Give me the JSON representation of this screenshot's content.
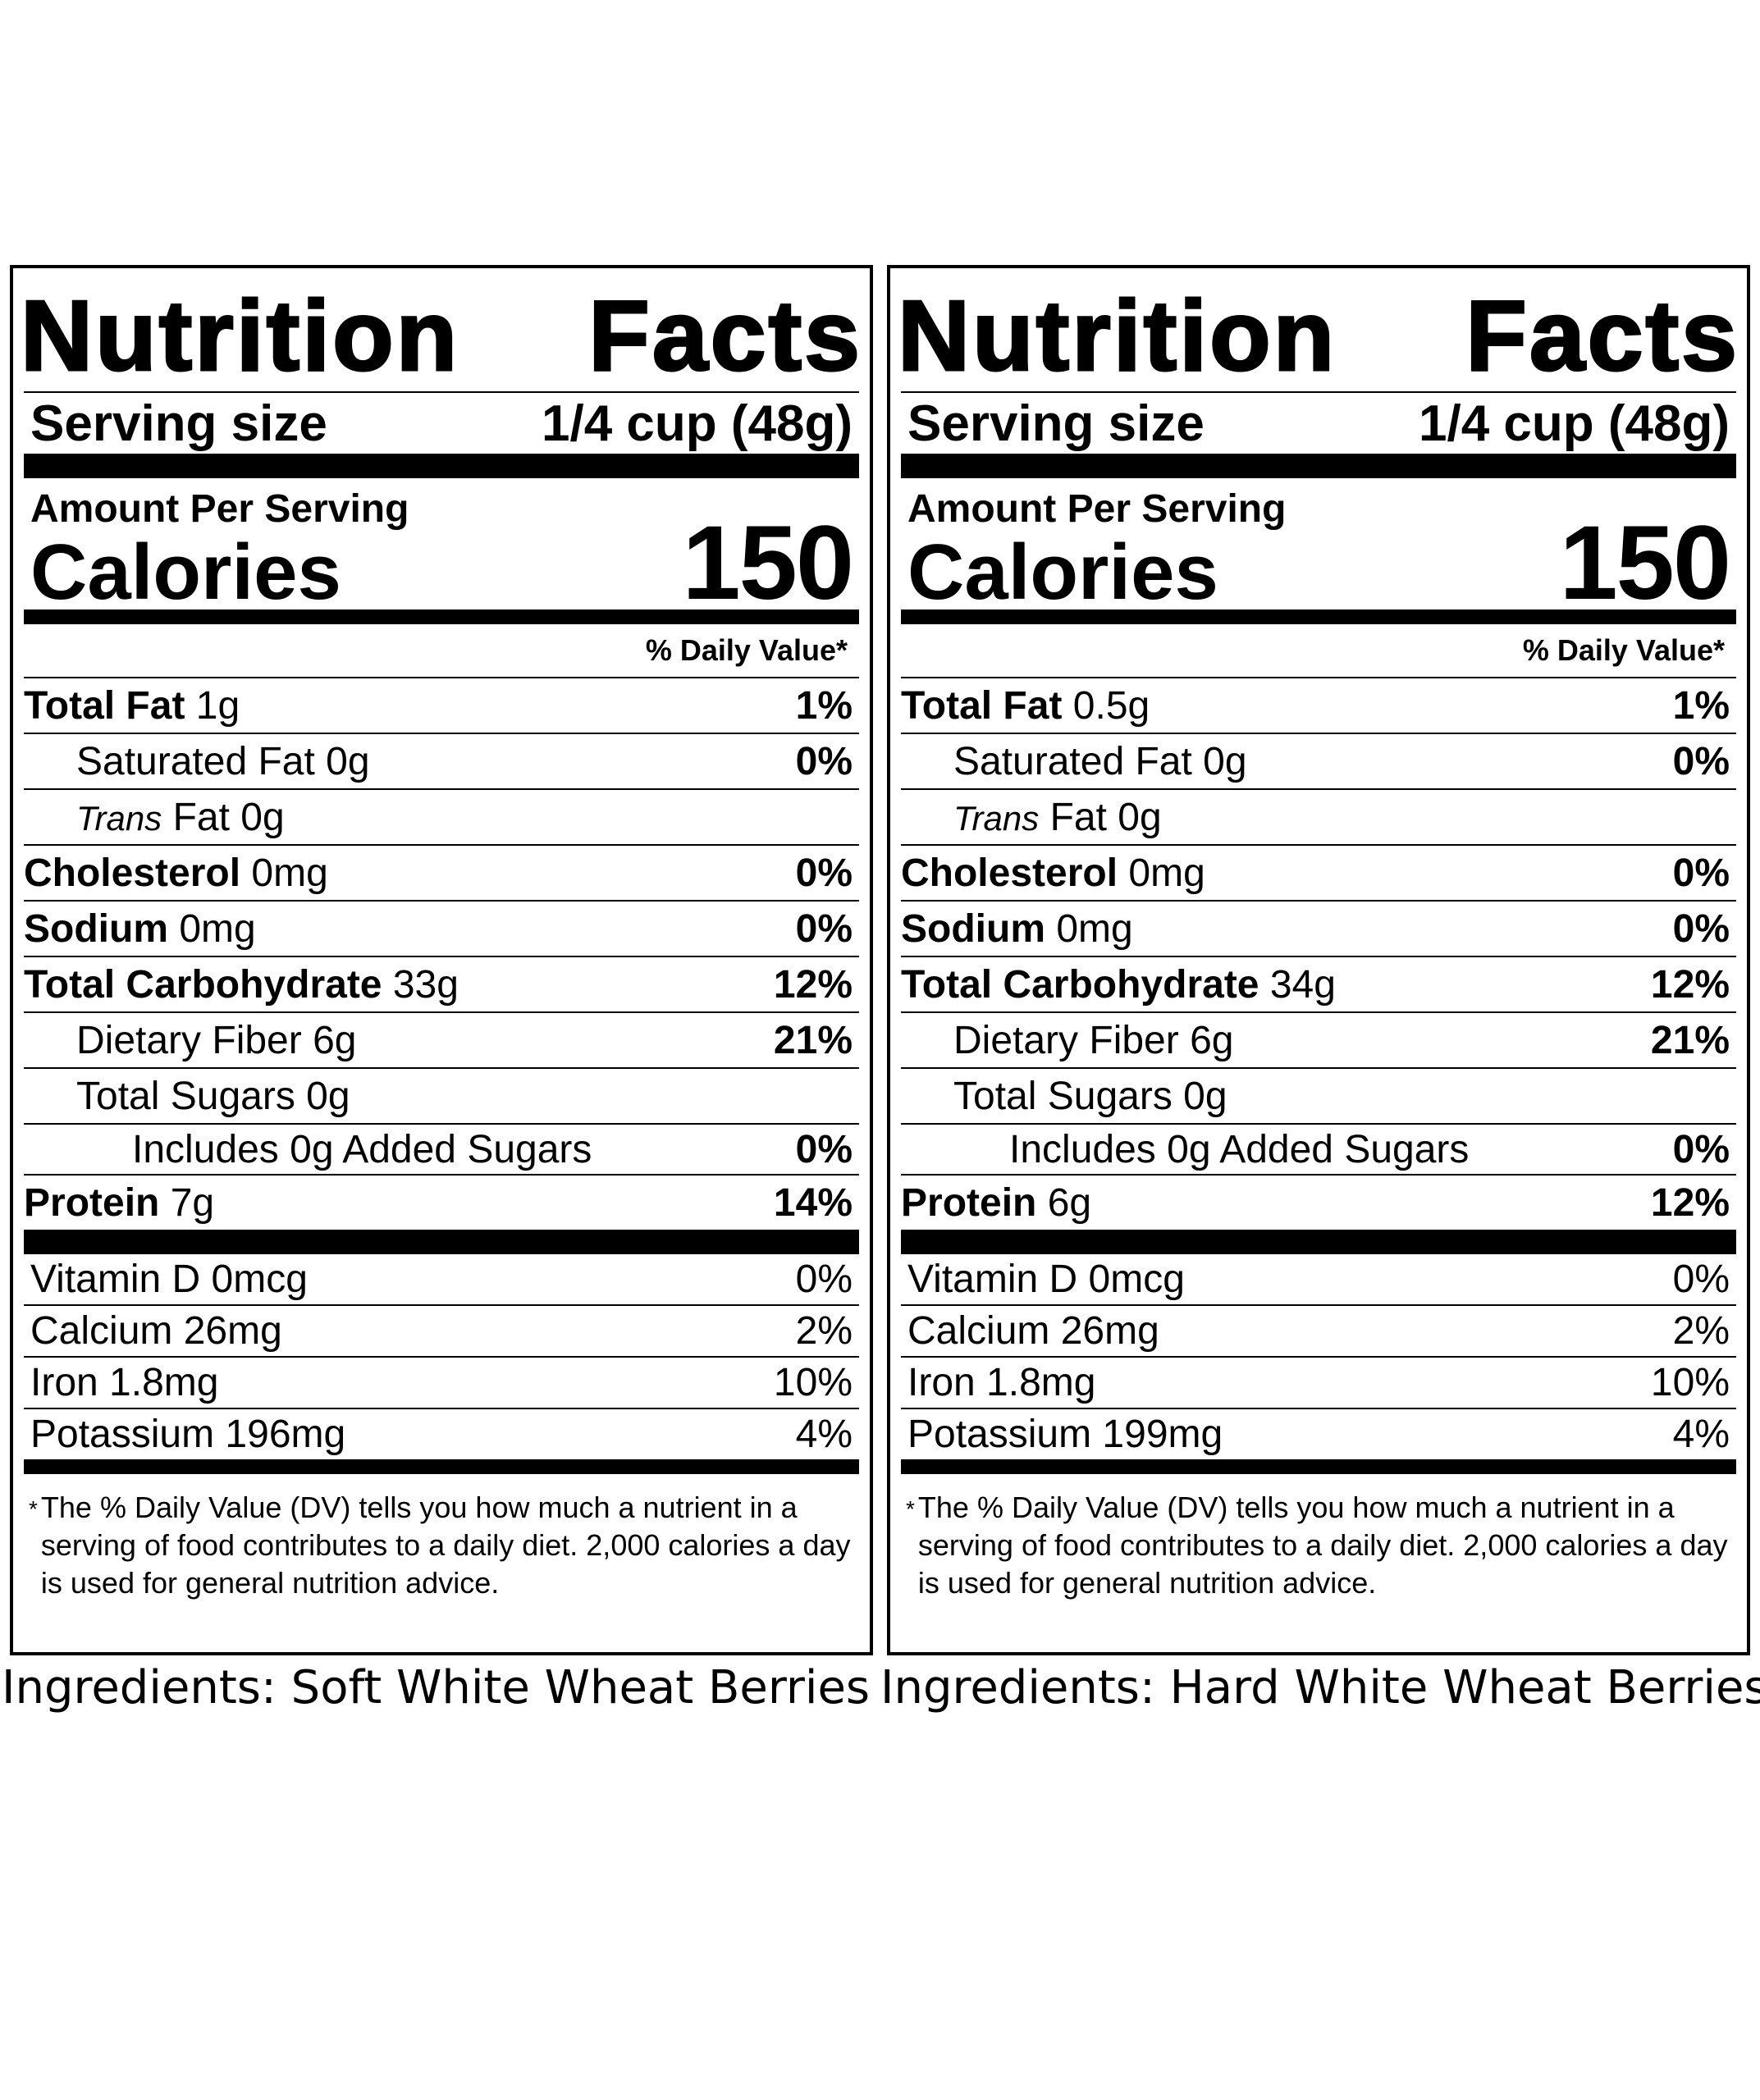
{
  "labels": [
    {
      "title": [
        "Nutrition",
        "Facts"
      ],
      "serving_size_label": "Serving size",
      "serving_size_value": "1/4 cup (48g)",
      "amount_per_serving": "Amount Per Serving",
      "calories_label": "Calories",
      "calories_value": "150",
      "daily_value_header": "% Daily Value*",
      "total_fat": {
        "label": "Total Fat",
        "amount": "1g",
        "dv": "1%"
      },
      "saturated_fat": {
        "label": "Saturated Fat 0g",
        "dv": "0%"
      },
      "trans_fat": {
        "label_italic": "Trans",
        "label": "Fat 0g"
      },
      "cholesterol": {
        "label": "Cholesterol",
        "amount": "0mg",
        "dv": "0%"
      },
      "sodium": {
        "label": "Sodium",
        "amount": "0mg",
        "dv": "0%"
      },
      "total_carbohydrate": {
        "label": "Total Carbohydrate",
        "amount": "33g",
        "dv": "12%"
      },
      "dietary_fiber": {
        "label": "Dietary Fiber 6g",
        "dv": "21%"
      },
      "total_sugars": {
        "label": "Total Sugars 0g"
      },
      "added_sugars": {
        "label": "Includes 0g Added Sugars",
        "dv": "0%"
      },
      "protein": {
        "label": "Protein",
        "amount": "7g",
        "dv": "14%"
      },
      "vitamin_d": {
        "label": "Vitamin D 0mcg",
        "dv": "0%"
      },
      "calcium": {
        "label": "Calcium 26mg",
        "dv": "2%"
      },
      "iron": {
        "label": "Iron 1.8mg",
        "dv": "10%"
      },
      "potassium": {
        "label": "Potassium 196mg",
        "dv": "4%"
      },
      "footnote_star": "*",
      "footnote": "The % Daily Value (DV) tells you how much a nutrient in a serving of food contributes to a daily diet. 2,000 calories a day is used for general nutrition advice.",
      "ingredients": "Ingredients: Soft White Wheat Berries"
    },
    {
      "title": [
        "Nutrition",
        "Facts"
      ],
      "serving_size_label": "Serving size",
      "serving_size_value": "1/4 cup (48g)",
      "amount_per_serving": "Amount Per Serving",
      "calories_label": "Calories",
      "calories_value": "150",
      "daily_value_header": "% Daily Value*",
      "total_fat": {
        "label": "Total Fat",
        "amount": "0.5g",
        "dv": "1%"
      },
      "saturated_fat": {
        "label": "Saturated Fat 0g",
        "dv": "0%"
      },
      "trans_fat": {
        "label_italic": "Trans",
        "label": "Fat 0g"
      },
      "cholesterol": {
        "label": "Cholesterol",
        "amount": "0mg",
        "dv": "0%"
      },
      "sodium": {
        "label": "Sodium",
        "amount": "0mg",
        "dv": "0%"
      },
      "total_carbohydrate": {
        "label": "Total Carbohydrate",
        "amount": "34g",
        "dv": "12%"
      },
      "dietary_fiber": {
        "label": "Dietary Fiber 6g",
        "dv": "21%"
      },
      "total_sugars": {
        "label": "Total Sugars 0g"
      },
      "added_sugars": {
        "label": "Includes 0g Added Sugars",
        "dv": "0%"
      },
      "protein": {
        "label": "Protein",
        "amount": "6g",
        "dv": "12%"
      },
      "vitamin_d": {
        "label": "Vitamin D 0mcg",
        "dv": "0%"
      },
      "calcium": {
        "label": "Calcium 26mg",
        "dv": "2%"
      },
      "iron": {
        "label": "Iron 1.8mg",
        "dv": "10%"
      },
      "potassium": {
        "label": "Potassium 199mg",
        "dv": "4%"
      },
      "footnote_star": "*",
      "footnote": "The % Daily Value (DV) tells you how much a nutrient in a serving of food contributes to a daily diet. 2,000 calories a day is used for general nutrition advice.",
      "ingredients": "Ingredients: Hard White Wheat Berries"
    }
  ]
}
